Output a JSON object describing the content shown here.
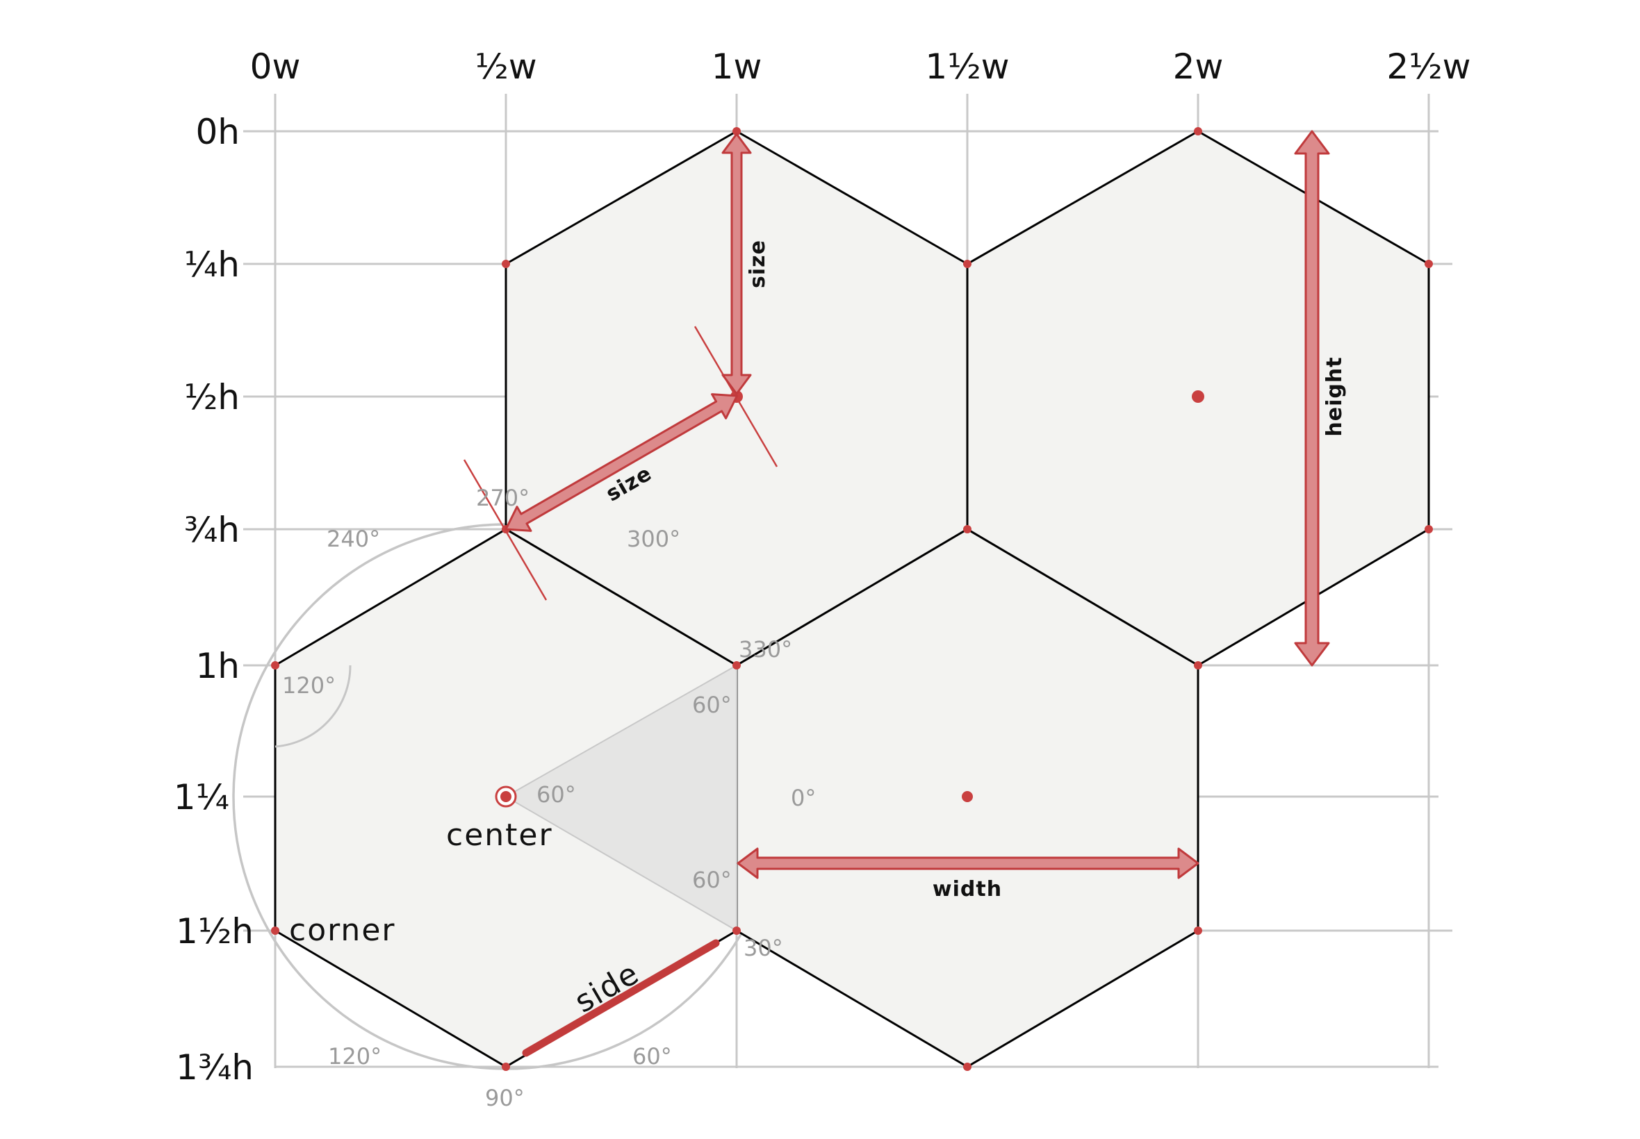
{
  "columns": [
    "0w",
    "½w",
    "1w",
    "1½w",
    "2w",
    "2½w"
  ],
  "rows": [
    "0h",
    "¼h",
    "½h",
    "¾h",
    "1h",
    "1¼",
    "1½h",
    "1¾h"
  ],
  "angles": {
    "a270": "270°",
    "a240": "240°",
    "a300": "300°",
    "a330": "330°",
    "a120_inner": "120°",
    "a60_top": "60°",
    "a60_center": "60°",
    "a0": "0°",
    "a60_bottom": "60°",
    "a30": "30°",
    "a120_bottom": "120°",
    "a60_bottom_right": "60°",
    "a90": "90°"
  },
  "terms": {
    "center": "center",
    "corner": "corner",
    "side": "side"
  },
  "dimensions": {
    "size_vertical": "size",
    "size_diagonal": "size",
    "height": "height",
    "width": "width"
  },
  "colors": {
    "accent": "#c94040",
    "arrow_fill": "#dc8a8b",
    "hex_fill": "#f3f3f1",
    "grid": "#c8c8c8"
  }
}
